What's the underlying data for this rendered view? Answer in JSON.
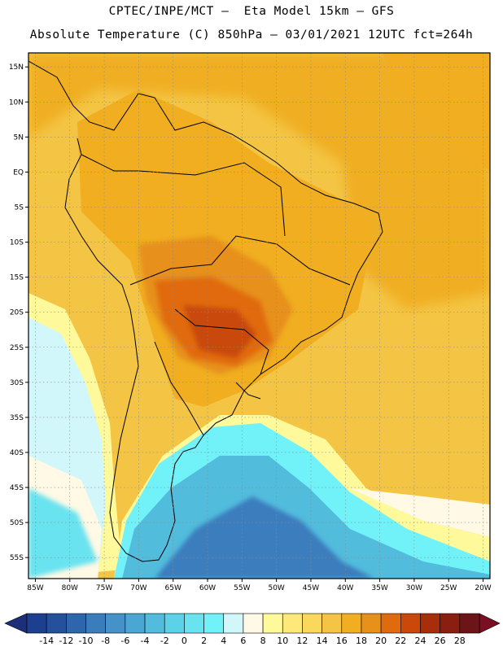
{
  "header": {
    "title_line1": "CPTEC/INPE/MCT –  Eta Model 15km – GFS",
    "title_line2": "Absolute Temperature (C) 850hPa – 03/01/2021 12UTC fct=264h"
  },
  "map": {
    "lon_range": [
      -86,
      -19
    ],
    "lat_range": [
      -58,
      17
    ],
    "x_ticks": [
      "85W",
      "80W",
      "75W",
      "70W",
      "65W",
      "60W",
      "55W",
      "50W",
      "45W",
      "40W",
      "35W",
      "30W",
      "25W",
      "20W"
    ],
    "x_tick_values": [
      -85,
      -80,
      -75,
      -70,
      -65,
      -60,
      -55,
      -50,
      -45,
      -40,
      -35,
      -30,
      -25,
      -20
    ],
    "y_ticks": [
      "15N",
      "10N",
      "5N",
      "EQ",
      "5S",
      "10S",
      "15S",
      "20S",
      "25S",
      "30S",
      "35S",
      "40S",
      "45S",
      "50S",
      "55S"
    ],
    "y_tick_values": [
      15,
      10,
      5,
      0,
      -5,
      -10,
      -15,
      -20,
      -25,
      -30,
      -35,
      -40,
      -45,
      -50,
      -55
    ],
    "grid": true
  },
  "colorbar": {
    "labels": [
      "-14",
      "-12",
      "-10",
      "-8",
      "-6",
      "-4",
      "-2",
      "0",
      "2",
      "4",
      "6",
      "8",
      "10",
      "12",
      "14",
      "16",
      "18",
      "20",
      "22",
      "24",
      "26",
      "28"
    ],
    "colors": [
      "#1d3f8f",
      "#24509c",
      "#2e66ad",
      "#3a7dbd",
      "#4592c8",
      "#4aa6d3",
      "#52bcdd",
      "#5cd2e8",
      "#6ae3f0",
      "#70f2f8",
      "#d2f7fb",
      "#fff9e6",
      "#fef99a",
      "#fde97a",
      "#f9d85c",
      "#f4c545",
      "#f0ae20",
      "#e7901a",
      "#e06b0c",
      "#c9480a",
      "#a82e0b",
      "#8a1e10",
      "#6c1418"
    ],
    "under_color": "#1d2f7a",
    "over_color": "#7a0f24"
  }
}
